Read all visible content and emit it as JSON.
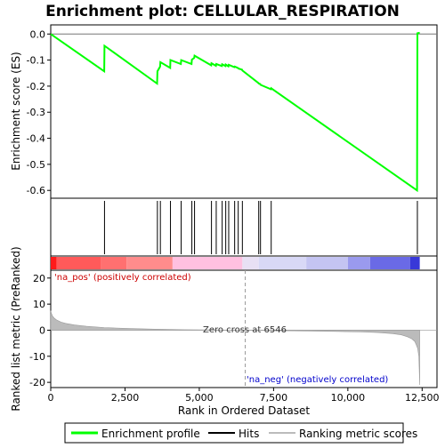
{
  "chart_data": {
    "type": "line",
    "title": "Enrichment plot: CELLULAR_RESPIRATION",
    "panels": {
      "enrichment": {
        "ylabel": "Enrichment score (ES)",
        "ylim": [
          -0.63,
          0.035
        ],
        "yticks": [
          0.0,
          -0.1,
          -0.2,
          -0.3,
          -0.4,
          -0.5,
          -0.6
        ],
        "ytick_labels": [
          "0.0",
          "-0.1",
          "-0.2",
          "-0.3",
          "-0.4",
          "-0.5",
          "-0.6"
        ],
        "series": [
          {
            "name": "Enrichment profile",
            "color": "#00ff00",
            "x": [
              0,
              1800,
              1810,
              3580,
              3590,
              3680,
              3690,
              4020,
              4030,
              4380,
              4390,
              4740,
              4750,
              4830,
              4840,
              5400,
              5410,
              5560,
              5570,
              5760,
              5770,
              5880,
              5890,
              5980,
              5990,
              6180,
              6190,
              6300,
              6310,
              6440,
              6450,
              6990,
              7000,
              7050,
              7060,
              7410,
              7420,
              12330,
              12340,
              12420
            ],
            "y": [
              0.0,
              -0.143,
              -0.045,
              -0.19,
              -0.143,
              -0.125,
              -0.108,
              -0.13,
              -0.1,
              -0.115,
              -0.1,
              -0.115,
              -0.098,
              -0.092,
              -0.083,
              -0.12,
              -0.112,
              -0.122,
              -0.115,
              -0.123,
              -0.116,
              -0.123,
              -0.117,
              -0.124,
              -0.118,
              -0.127,
              -0.125,
              -0.13,
              -0.132,
              -0.137,
              -0.14,
              -0.188,
              -0.19,
              -0.192,
              -0.195,
              -0.212,
              -0.208,
              -0.6,
              0.003,
              0.005
            ]
          }
        ],
        "zero_line_color": "#777777"
      },
      "hits": {
        "positions": [
          1810,
          3590,
          3690,
          4030,
          4390,
          4750,
          4840,
          5410,
          5570,
          5770,
          5890,
          5990,
          6190,
          6310,
          6450,
          7000,
          7060,
          7420,
          12340
        ]
      },
      "ranked_metric": {
        "ylabel": "Ranked list metric (PreRanked)",
        "ylim": [
          -22,
          23
        ],
        "yticks": [
          20,
          10,
          0,
          -10,
          -20
        ],
        "ytick_labels": [
          "20",
          "10",
          "0",
          "-10",
          "-20"
        ],
        "x": [
          0,
          20,
          60,
          120,
          200,
          350,
          500,
          800,
          1200,
          1800,
          2500,
          3500,
          4500,
          5500,
          6546,
          7500,
          8500,
          9500,
          10500,
          11000,
          11500,
          11800,
          12000,
          12150,
          12250,
          12300,
          12350,
          12390,
          12420
        ],
        "y": [
          7.5,
          6.5,
          5.4,
          4.6,
          3.9,
          3.1,
          2.6,
          2.0,
          1.5,
          1.0,
          0.7,
          0.4,
          0.2,
          0.1,
          0.0,
          -0.15,
          -0.3,
          -0.45,
          -0.7,
          -0.9,
          -1.3,
          -1.8,
          -2.5,
          -3.3,
          -4.3,
          -5.5,
          -7.0,
          -10.0,
          -21.0
        ],
        "fill_color": "#bbbbbb",
        "zero_cross_label": "Zero cross at 6546",
        "zero_cross": 6546,
        "pos_label": "'na_pos' (positively correlated)",
        "pos_color": "#cc0000",
        "neg_label": "'na_neg' (negatively correlated)",
        "neg_color": "#0000cc"
      }
    },
    "xlabel": "Rank in Ordered Dataset",
    "xlim": [
      0,
      13000
    ],
    "xticks": [
      0,
      2500,
      5000,
      7500,
      10000,
      12500
    ],
    "xtick_labels": [
      "0",
      "2,500",
      "5,000",
      "7,500",
      "10,000",
      "12,500"
    ],
    "heatmap_bands": [
      {
        "start": 0,
        "end": 200,
        "color": "#ff1a1a"
      },
      {
        "start": 200,
        "end": 1700,
        "color": "#ff5a5a"
      },
      {
        "start": 1700,
        "end": 2550,
        "color": "#ff7070"
      },
      {
        "start": 2550,
        "end": 4100,
        "color": "#ff8c8c"
      },
      {
        "start": 4100,
        "end": 6450,
        "color": "#ffc0e0"
      },
      {
        "start": 6450,
        "end": 7000,
        "color": "#e8e0f4"
      },
      {
        "start": 7000,
        "end": 8600,
        "color": "#d8d8f6"
      },
      {
        "start": 8600,
        "end": 10000,
        "color": "#c4c4f2"
      },
      {
        "start": 10000,
        "end": 10750,
        "color": "#9a9aee"
      },
      {
        "start": 10750,
        "end": 12100,
        "color": "#6a6ae6"
      },
      {
        "start": 12100,
        "end": 12420,
        "color": "#3838d8"
      }
    ],
    "legend": {
      "placement": "bottom",
      "items": [
        {
          "label": "Enrichment profile",
          "color": "#00ff00"
        },
        {
          "label": "Hits",
          "color": "#000000"
        },
        {
          "label": "Ranking metric scores",
          "color": "#bbbbbb"
        }
      ]
    }
  }
}
